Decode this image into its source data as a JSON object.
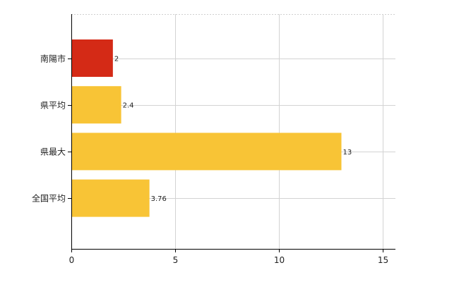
{
  "chart_data": {
    "type": "bar",
    "orientation": "horizontal",
    "categories": [
      "南陽市",
      "県平均",
      "県最大",
      "全国平均"
    ],
    "values": [
      2,
      2.4,
      13,
      3.76
    ],
    "value_labels": [
      "2",
      "2.4",
      "13",
      "3.76"
    ],
    "xlim": [
      0,
      15.6
    ],
    "xticks": [
      0,
      5,
      10,
      15
    ],
    "xtick_labels": [
      "0",
      "5",
      "10",
      "15"
    ],
    "title": "",
    "xlabel": "",
    "ylabel": "",
    "grid": true,
    "legend": "none",
    "colors": {
      "highlight": "#d42a16",
      "bar": "#f8c436",
      "axis": "#000000",
      "grid": "#d3d3d3"
    },
    "bar_colors": [
      "#d42a16",
      "#f8c436",
      "#f8c436",
      "#f8c436"
    ]
  }
}
